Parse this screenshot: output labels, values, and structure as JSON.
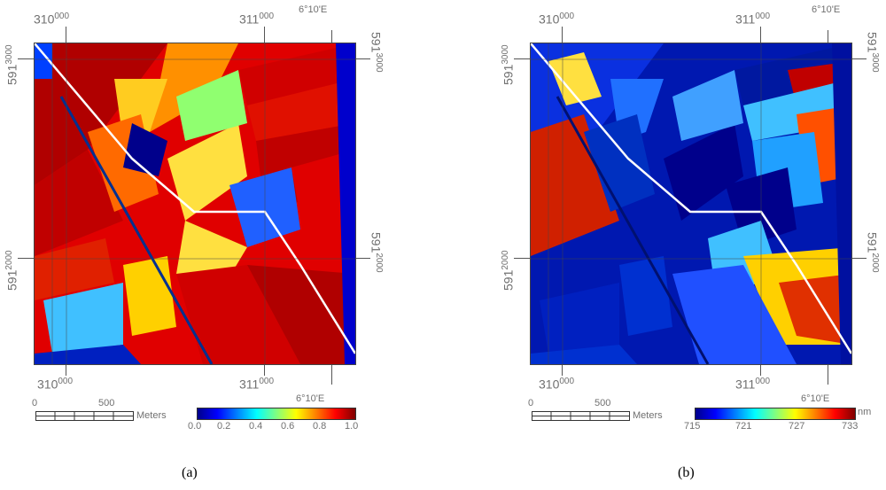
{
  "panels": [
    {
      "id": "a",
      "caption": "(a)",
      "easting_top": {
        "left_main": "310",
        "left_sup": "000",
        "right_main": "311",
        "right_sup": "000"
      },
      "easting_bottom": {
        "left_main": "310",
        "left_sup": "000",
        "right_main": "311",
        "right_sup": "000"
      },
      "northing_left": {
        "top_main": "591",
        "top_sup": "3000",
        "mid_main": "591",
        "mid_sup": "2000"
      },
      "northing_right": {
        "top_main": "591",
        "top_sup": "3000",
        "mid_main": "591",
        "mid_sup": "2000"
      },
      "longitude_top": "6°10'E",
      "longitude_bottom": "6°10'E",
      "scale": {
        "zero": "0",
        "mid": "500",
        "unit": "Meters"
      },
      "colorbar": {
        "ticks": [
          "0.0",
          "0.2",
          "0.4",
          "0.6",
          "0.8",
          "1.0"
        ],
        "unit": ""
      },
      "dominant_palette": "warm"
    },
    {
      "id": "b",
      "caption": "(b)",
      "easting_top": {
        "left_main": "310",
        "left_sup": "000",
        "right_main": "311",
        "right_sup": "000"
      },
      "easting_bottom": {
        "left_main": "310",
        "left_sup": "000",
        "right_main": "311",
        "right_sup": "000"
      },
      "northing_left": {
        "top_main": "591",
        "top_sup": "3000",
        "mid_main": "591",
        "mid_sup": "2000"
      },
      "northing_right": {
        "top_main": "591",
        "top_sup": "3000",
        "mid_main": "591",
        "mid_sup": "2000"
      },
      "longitude_top": "6°10'E",
      "longitude_bottom": "6°10'E",
      "scale": {
        "zero": "0",
        "mid": "500",
        "unit": "Meters"
      },
      "colorbar": {
        "ticks": [
          "715",
          "721",
          "727",
          "733"
        ],
        "unit": "nm"
      },
      "dominant_palette": "cool"
    }
  ],
  "colormap": [
    "#00008b",
    "#0000ff",
    "#0080ff",
    "#00ffff",
    "#80ff80",
    "#ffff00",
    "#ff8000",
    "#ff0000",
    "#800000"
  ]
}
